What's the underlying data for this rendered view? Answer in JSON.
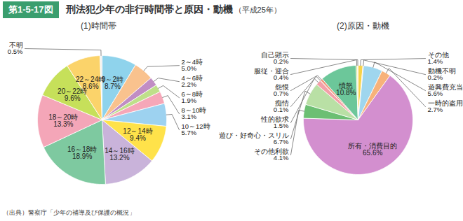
{
  "figure_label": "第1-5-17図",
  "title": "刑法犯少年の非行時間帯と原因・動機",
  "subtitle": "（平成25年）",
  "source": "（出典）警察庁「少年の補導及び保護の概況」",
  "chart_data": [
    {
      "type": "pie",
      "title": "(1)時間帯",
      "categories": [
        "0～2時",
        "2～4時",
        "4～6時",
        "6～8時",
        "8～10時",
        "10～12時",
        "12～14時",
        "14～16時",
        "16～18時",
        "18～20時",
        "20～22時",
        "22～24時",
        "不明"
      ],
      "values": [
        8.7,
        5.0,
        2.2,
        1.9,
        3.1,
        5.7,
        9.4,
        13.2,
        18.9,
        13.3,
        9.6,
        8.6,
        0.5
      ],
      "value_labels": [
        "8.7%",
        "5.0%",
        "2.2%",
        "1.9%",
        "3.1%",
        "5.7%",
        "9.4%",
        "13.2%",
        "18.9%",
        "13.3%",
        "9.6%",
        "8.6%",
        "0.5%"
      ],
      "colors": [
        "#8fd3ec",
        "#f9c28e",
        "#c18dc4",
        "#bfe08a",
        "#f6a7b8",
        "#9dd2f0",
        "#ffe24a",
        "#c9b3da",
        "#7ec9a0",
        "#f4a6b8",
        "#c6e05a",
        "#fbd36a",
        "#f0f0f0"
      ],
      "data_labels": true
    },
    {
      "type": "pie",
      "title": "(2)原因・動機",
      "categories": [
        "その他",
        "動機不明",
        "遊興費充当",
        "一時的盗用",
        "所有・消費目的",
        "その他利欲",
        "遊び・好奇心・スリル",
        "性的欲求",
        "痴情",
        "怨恨",
        "憤怒",
        "服従・迎合",
        "自己顕示"
      ],
      "values": [
        1.4,
        0.2,
        5.6,
        2.7,
        65.6,
        4.1,
        6.7,
        1.5,
        0.1,
        0.7,
        10.8,
        0.4,
        0.2
      ],
      "value_labels": [
        "1.4%",
        "0.2%",
        "5.6%",
        "2.7%",
        "65.6%",
        "4.1%",
        "6.7%",
        "1.5%",
        "0.1%",
        "0.7%",
        "10.8%",
        "0.4%",
        "0.2%"
      ],
      "colors": [
        "#f7d34a",
        "#f2a65a",
        "#9fd6ee",
        "#f7b27a",
        "#d38fcf",
        "#6cbf73",
        "#b9e0a5",
        "#f4a0a8",
        "#e57d7d",
        "#f09a7e",
        "#6cc79a",
        "#c8e08a",
        "#f9c680"
      ],
      "data_labels": true
    }
  ]
}
